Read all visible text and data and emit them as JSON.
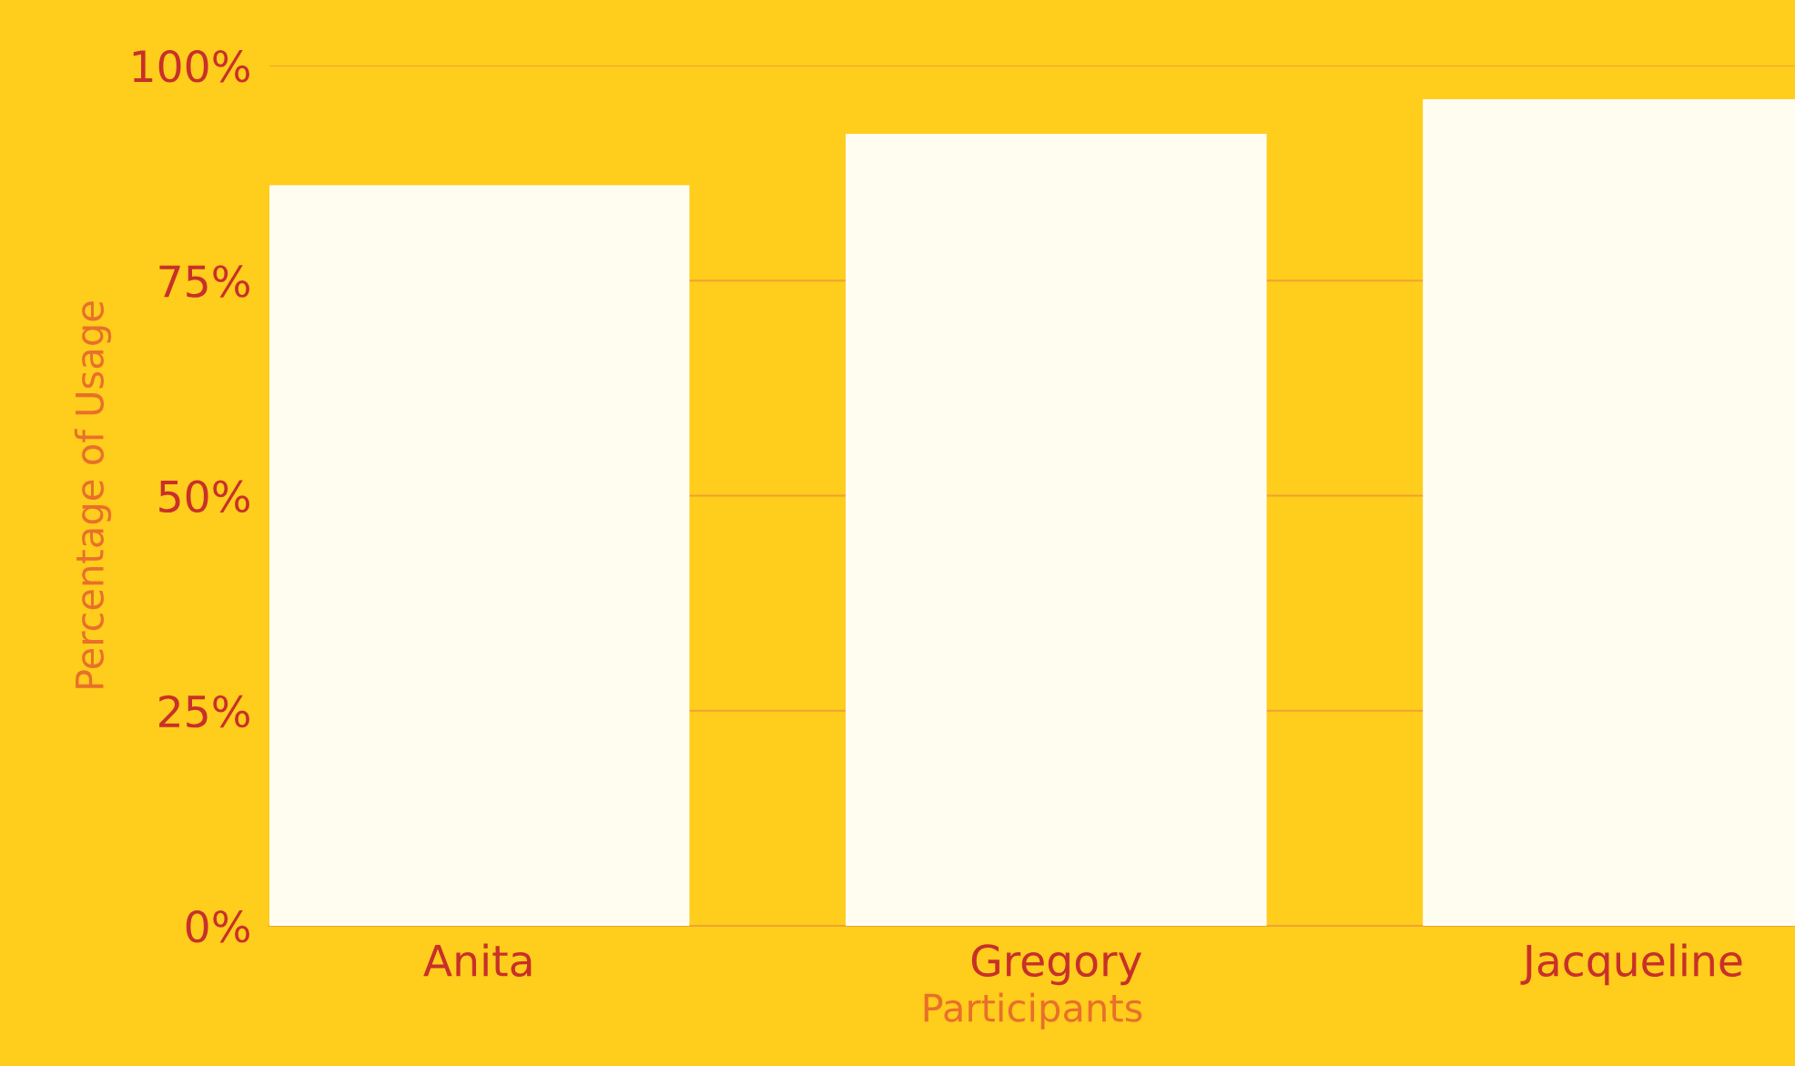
{
  "chart_data": {
    "type": "bar",
    "xlabel": "Participants",
    "ylabel": "Percentage of Usage",
    "categories": [
      "Anita",
      "Gregory",
      "Jacqueline"
    ],
    "values": [
      86,
      92,
      96
    ],
    "color": "#fffdf0",
    "ylim": [
      0,
      100
    ],
    "yticks": [
      {
        "value": 0,
        "label": "0%"
      },
      {
        "value": 25,
        "label": "25%"
      },
      {
        "value": 50,
        "label": "50%"
      },
      {
        "value": 75,
        "label": "75%"
      },
      {
        "value": 100,
        "label": "100%"
      }
    ],
    "grid": "y",
    "legend": false
  }
}
